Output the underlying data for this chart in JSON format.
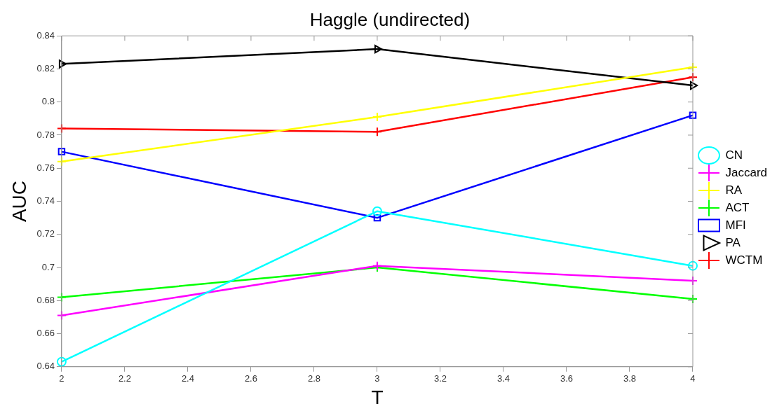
{
  "chart_data": {
    "type": "line",
    "title": "Haggle (undirected)",
    "xlabel": "T",
    "ylabel": "AUC",
    "x": [
      2,
      3,
      4
    ],
    "xlim": [
      2,
      4
    ],
    "xticks": [
      2,
      2.2,
      2.4,
      2.6,
      2.8,
      3,
      3.2,
      3.4,
      3.6,
      3.8,
      4
    ],
    "ylim": [
      0.64,
      0.84
    ],
    "yticks": [
      0.64,
      0.66,
      0.68,
      0.7,
      0.72,
      0.74,
      0.76,
      0.78,
      0.8,
      0.82,
      0.84
    ],
    "grid": false,
    "legend": "right",
    "line_style": "solid",
    "series": [
      {
        "name": "CN",
        "color": "#00ffff",
        "marker": "circle",
        "values": [
          0.643,
          0.734,
          0.701
        ]
      },
      {
        "name": "Jaccard",
        "color": "#ff00ff",
        "marker": "cross",
        "values": [
          0.671,
          0.701,
          0.692
        ]
      },
      {
        "name": "RA",
        "color": "#ffff00",
        "marker": "cross",
        "values": [
          0.764,
          0.791,
          0.821
        ]
      },
      {
        "name": "ACT",
        "color": "#00ff00",
        "marker": "cross",
        "values": [
          0.682,
          0.7,
          0.681
        ]
      },
      {
        "name": "MFI",
        "color": "#0000ff",
        "marker": "square",
        "values": [
          0.77,
          0.73,
          0.792
        ]
      },
      {
        "name": "PA",
        "color": "#000000",
        "marker": "triangle",
        "values": [
          0.823,
          0.832,
          0.81
        ]
      },
      {
        "name": "WCTM",
        "color": "#ff0000",
        "marker": "cross",
        "values": [
          0.784,
          0.782,
          0.815
        ]
      }
    ]
  }
}
